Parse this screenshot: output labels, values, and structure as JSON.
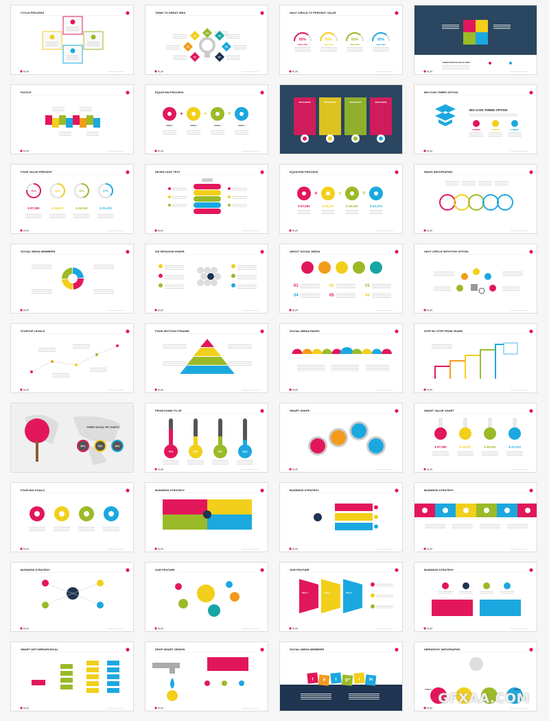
{
  "colors": {
    "pink": "#e2175b",
    "yellow": "#f2cf1a",
    "green": "#9bba28",
    "blue": "#1ba8df",
    "orange": "#f29b1b",
    "navy": "#1e3450",
    "gray": "#cccccc",
    "dark": "#2a4660"
  },
  "footer_logo": "PLAY",
  "watermark": "GFXAA.COM",
  "slides": [
    {
      "title": "CYCLE PROCESS",
      "kind": "cycle"
    },
    {
      "title": "THINK TO GREAT IDEA",
      "kind": "idea",
      "labels": [
        "01",
        "02",
        "03",
        "04",
        "05",
        "06",
        "07"
      ]
    },
    {
      "title": "HALF CIRCLE TO PERCENT VALUE",
      "kind": "halfarc",
      "values": [
        "65%",
        "65%",
        "65%",
        "65%"
      ],
      "caption": "ANALYTIKS"
    },
    {
      "title": "",
      "kind": "darkpuzzle",
      "caption": "LOREM IPSUM DOLOR SIT AMET"
    },
    {
      "title": "PUZZLE",
      "kind": "puzzle"
    },
    {
      "title": "EQUATION PROCESS",
      "kind": "equation",
      "steps": [
        "STEP 1",
        "STEP 2",
        "STEP 3",
        "STEP 4"
      ]
    },
    {
      "title": "",
      "kind": "darkcards",
      "labels": [
        "INSTAGRAM",
        "INSTAGRAM",
        "INSTAGRAM",
        "INSTAGRAM"
      ]
    },
    {
      "title": "BIG ICON THREE OPTION",
      "kind": "bigicon",
      "heading": "BIG ICON THREE OPTION",
      "labels": [
        "SUMMER",
        "SUMMER",
        "SUMMER"
      ]
    },
    {
      "title": "FOUR VALUE PERCENT",
      "kind": "rings",
      "values": [
        "76%",
        "42%",
        "46%",
        "37%"
      ],
      "pcts": [
        76,
        42,
        46,
        37
      ],
      "amounts": [
        "$ 87,582",
        "$ 16,247",
        "$ 48,552",
        "$ 21,374"
      ]
    },
    {
      "title": "SEVEN LEAF TEXT",
      "kind": "leaf"
    },
    {
      "title": "EQUATION PROCESS",
      "kind": "equation2",
      "amounts": [
        "$ 87,582",
        "$ 16,237",
        "$ 46,552",
        "$ 21,374"
      ]
    },
    {
      "title": "RINGS INFOGRAPHIC",
      "kind": "olympic"
    },
    {
      "title": "SOCIAL MEDIA MEMBERS",
      "kind": "wheel"
    },
    {
      "title": "SIX HEXAGON SHAPE",
      "kind": "hex"
    },
    {
      "title": "ABOUT SOCIAL MEDIA",
      "kind": "social",
      "numbers": [
        "01",
        "02",
        "03",
        "04",
        "05",
        "06"
      ]
    },
    {
      "title": "HALF CIRCLE WITH FIVE OPTION",
      "kind": "halffive"
    },
    {
      "title": "STARTUP LEVELS",
      "kind": "startup"
    },
    {
      "title": "FOUR SECTION PYRAMID",
      "kind": "pyramid"
    },
    {
      "title": "SOCIAL MEDIA PAGES",
      "kind": "pages"
    },
    {
      "title": "STEP BY STEP FROM YEARS",
      "kind": "steps"
    },
    {
      "title": "THREE SOCIAL PIE CHARTS",
      "kind": "map",
      "values": [
        "60%",
        "75%",
        "30%"
      ]
    },
    {
      "title": "FROM DOWN TO UP",
      "kind": "thermo",
      "values": [
        "70%",
        "45%",
        "45%",
        "33%"
      ],
      "pcts": [
        70,
        45,
        45,
        33
      ]
    },
    {
      "title": "SMART SHAPE",
      "kind": "smart"
    },
    {
      "title": "SMART VALUE CHART",
      "kind": "flask",
      "amounts": [
        "$ 87,582",
        "$ 16,237",
        "$ 46,552",
        "$ 21,374"
      ]
    },
    {
      "title": "FOUR BIG GOALS",
      "kind": "goals"
    },
    {
      "title": "BUSINESS STRATEGY",
      "kind": "strat1"
    },
    {
      "title": "BUSINESS STRATEGY",
      "kind": "strat2"
    },
    {
      "title": "BUSINESS STRATEGY",
      "kind": "strat3"
    },
    {
      "title": "BUSINESS STRATEGY",
      "kind": "strat4"
    },
    {
      "title": "OUR FEATURE",
      "kind": "feature"
    },
    {
      "title": "OUR FEATURE",
      "kind": "funnel",
      "labels": [
        "Step 1",
        "Step 2",
        "Step 3"
      ]
    },
    {
      "title": "BUSINESS STRATEGY",
      "kind": "strat5"
    },
    {
      "title": "SMART ART HIERARCHICAL",
      "kind": "hier"
    },
    {
      "title": "DROP SMART DESIGN",
      "kind": "drop"
    },
    {
      "title": "SOCIAL MEDIA MEMBERS",
      "kind": "socialtiles",
      "labels": [
        "f",
        "p",
        "t",
        "g+",
        "t",
        "in"
      ]
    },
    {
      "title": "HIERARCHY INFOGRAPHIC",
      "kind": "hierinfo",
      "labels": [
        "STEP 1",
        "STEP 2"
      ]
    }
  ]
}
